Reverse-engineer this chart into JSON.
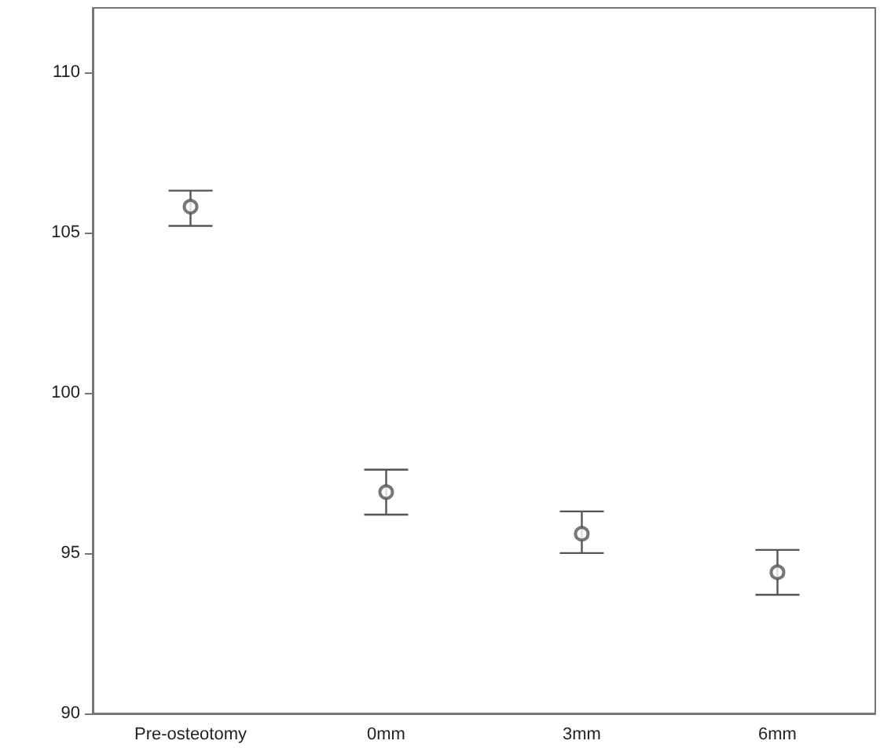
{
  "chart_data": {
    "type": "scatter",
    "categories": [
      "Pre-osteotomy",
      "0mm",
      "3mm",
      "6mm"
    ],
    "values": [
      105.8,
      96.9,
      95.6,
      94.4
    ],
    "errors": [
      [
        105.2,
        106.3
      ],
      [
        96.2,
        97.6
      ],
      [
        95.0,
        96.3
      ],
      [
        93.7,
        95.1
      ]
    ],
    "color": "#555555",
    "marker": "circle",
    "ylim": [
      90,
      112
    ],
    "yticks": [
      90,
      95,
      100,
      105,
      110
    ],
    "grid": false
  }
}
